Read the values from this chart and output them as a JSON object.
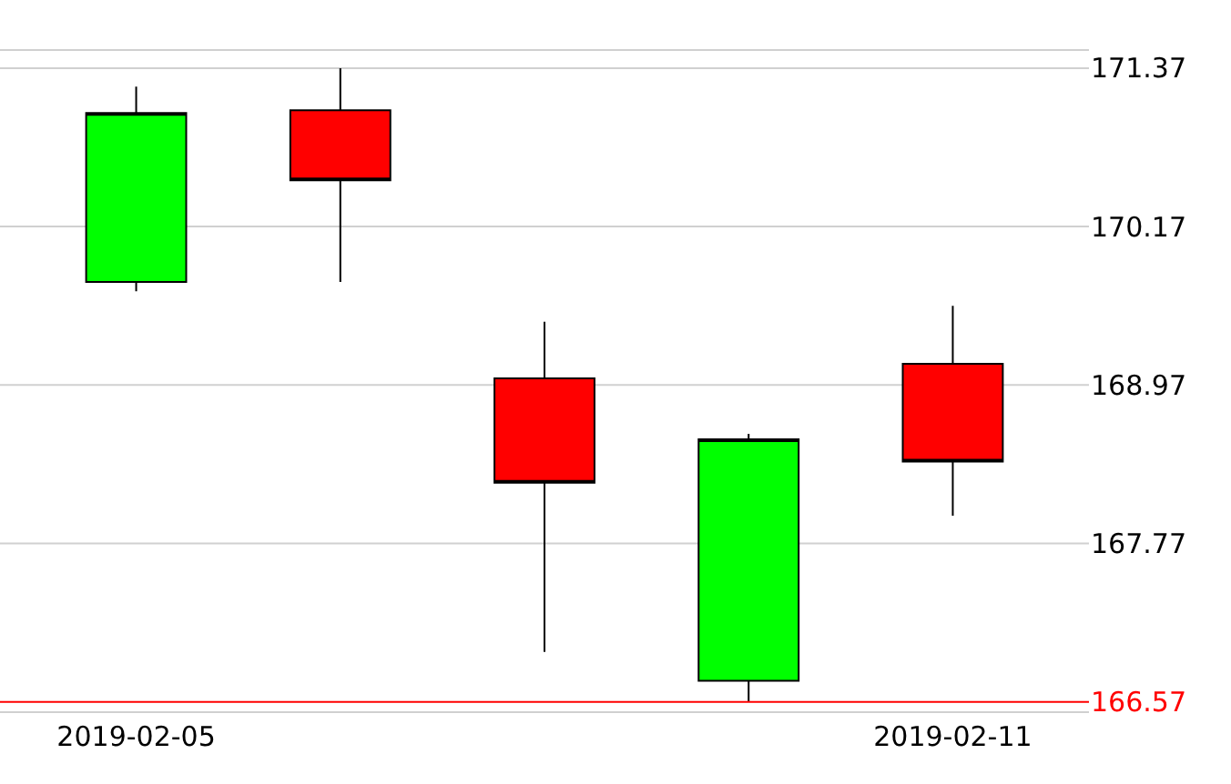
{
  "chart_data": {
    "type": "candlestick",
    "categories": [
      "2019-02-05",
      null,
      null,
      null,
      "2019-02-11"
    ],
    "ohlc": [
      [
        169.75,
        171.23,
        169.68,
        171.03
      ],
      [
        171.05,
        171.37,
        169.75,
        170.52
      ],
      [
        169.02,
        169.45,
        166.95,
        168.23
      ],
      [
        166.73,
        168.6,
        166.57,
        168.56
      ],
      [
        169.13,
        169.57,
        167.98,
        168.39
      ]
    ],
    "colors": [
      "#00ff00",
      "#ff0000",
      "#ff0000",
      "#00ff00",
      "#ff0000"
    ],
    "ylim": [
      166.5,
      171.5
    ],
    "yticks": [
      166.57,
      167.77,
      168.97,
      170.17,
      171.37
    ],
    "ref_lines": [
      {
        "axis": "y",
        "value": 166.57,
        "color": "#ff0000"
      }
    ],
    "grid": "y"
  }
}
